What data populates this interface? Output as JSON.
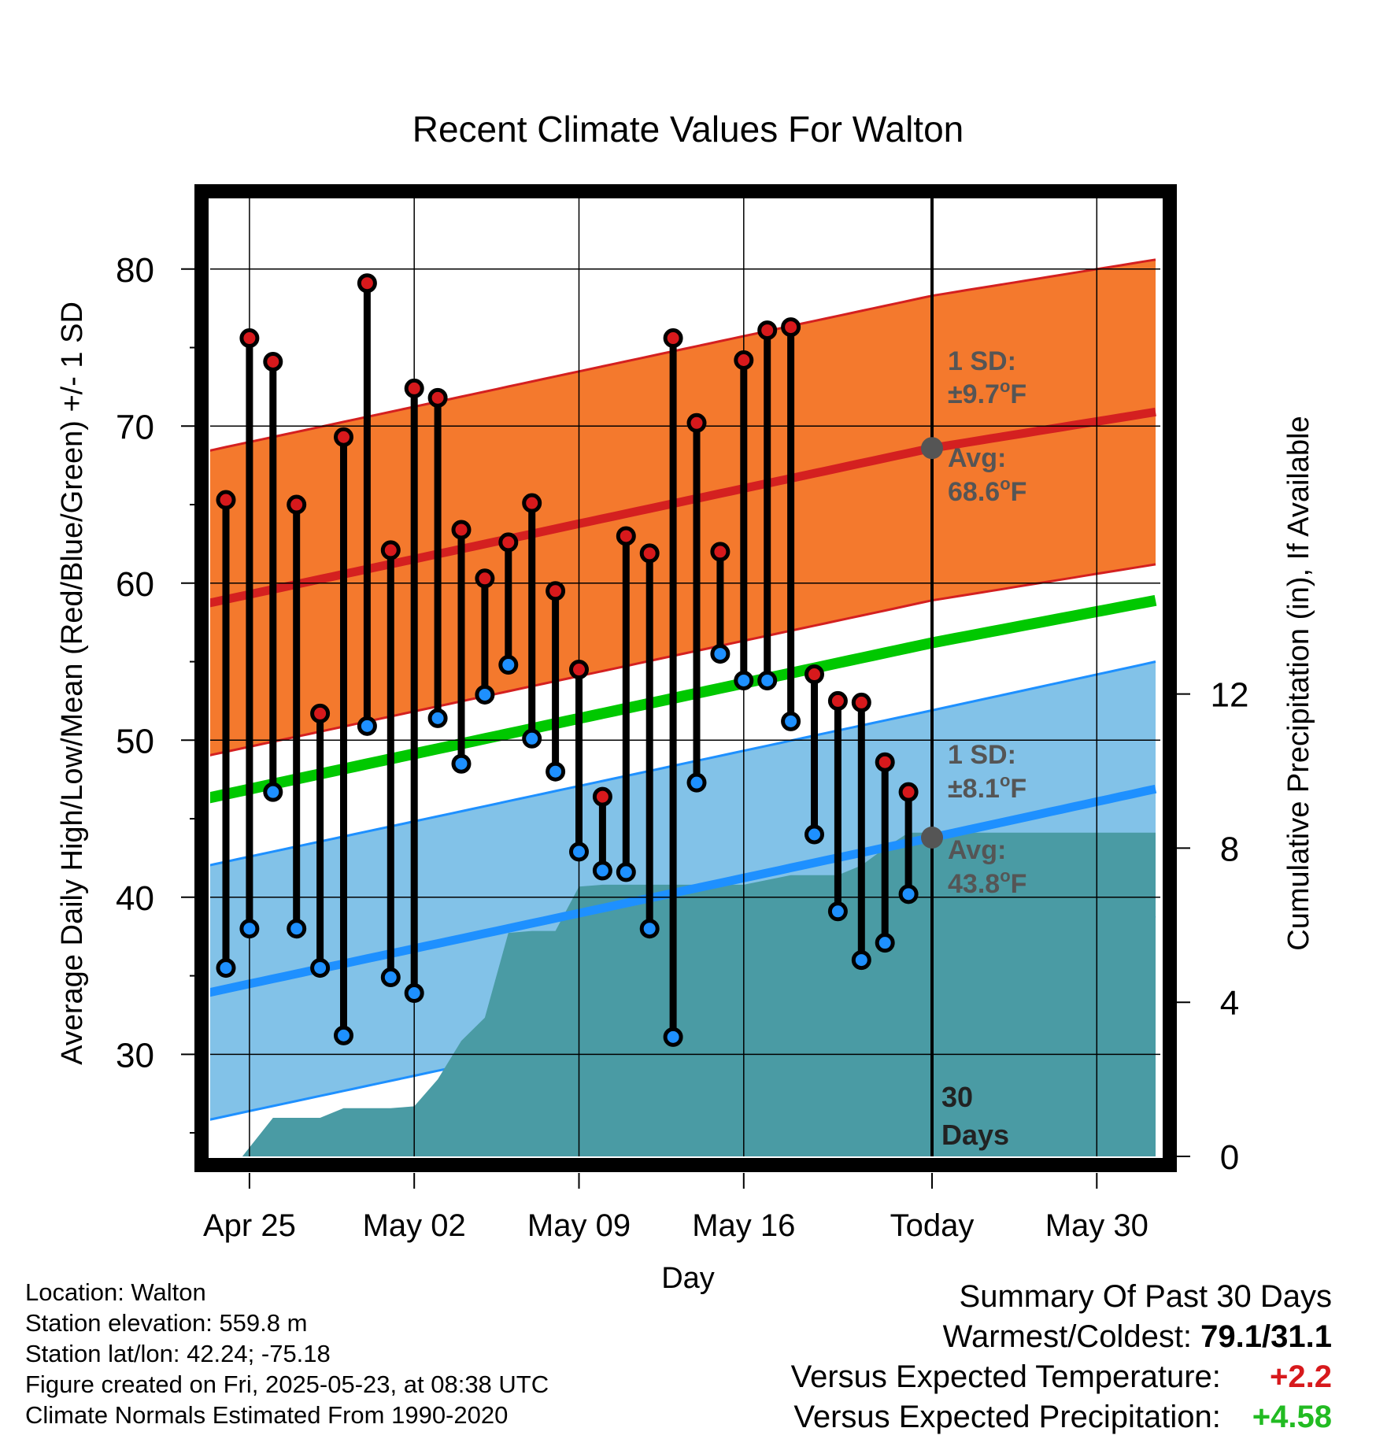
{
  "colors": {
    "high_marker": "#d7191c",
    "low_marker": "#1e90ff",
    "high_band": "#f4792d",
    "high_band_edge": "#d42020",
    "high_mean_line": "#d42020",
    "low_band": "#82c2e8",
    "low_band_edge": "#1e90ff",
    "low_mean_line": "#1e90ff",
    "mean_line": "#00c800",
    "precip_area": "#4a9ba4",
    "annotation_text": "#555555",
    "avg_dot": "#555555"
  },
  "chart_data": {
    "type": "line",
    "title": "Recent Climate Values For Walton",
    "xlabel": "Day",
    "ylabel_left": "Average Daily High/Low/Mean (Red/Blue/Green) +/- 1 SD",
    "ylabel_right": "Cumulative Precipitation (in), If Available",
    "x_range_days": [
      -33,
      9.5
    ],
    "ylim_left": [
      23.5,
      84.5
    ],
    "ylim_right": [
      0,
      25
    ],
    "x_tick_labels": [
      {
        "day": -29,
        "label": "Apr 25"
      },
      {
        "day": -22,
        "label": "May 02"
      },
      {
        "day": -15,
        "label": "May 09"
      },
      {
        "day": -8,
        "label": "May 16"
      },
      {
        "day": 0,
        "label": "Today"
      },
      {
        "day": 7,
        "label": "May 30"
      }
    ],
    "y_left_ticks": [
      30,
      40,
      50,
      60,
      70,
      80
    ],
    "y_right_ticks": [
      0,
      4,
      8,
      12
    ],
    "grid": true,
    "daily": [
      {
        "day": -30,
        "high": 65.3,
        "low": 35.5
      },
      {
        "day": -29,
        "high": 75.6,
        "low": 38.0
      },
      {
        "day": -28,
        "high": 74.1,
        "low": 46.7
      },
      {
        "day": -27,
        "high": 65.0,
        "low": 38.0
      },
      {
        "day": -26,
        "high": 51.7,
        "low": 35.5
      },
      {
        "day": -25,
        "high": 69.3,
        "low": 31.2
      },
      {
        "day": -24,
        "high": 79.1,
        "low": 50.9
      },
      {
        "day": -23,
        "high": 62.1,
        "low": 34.9
      },
      {
        "day": -22,
        "high": 72.4,
        "low": 33.9
      },
      {
        "day": -21,
        "high": 71.8,
        "low": 51.4
      },
      {
        "day": -20,
        "high": 63.4,
        "low": 48.5
      },
      {
        "day": -19,
        "high": 60.3,
        "low": 52.9
      },
      {
        "day": -18,
        "high": 62.6,
        "low": 54.8
      },
      {
        "day": -17,
        "high": 65.1,
        "low": 50.1
      },
      {
        "day": -16,
        "high": 59.5,
        "low": 48.0
      },
      {
        "day": -15,
        "high": 54.5,
        "low": 42.9
      },
      {
        "day": -14,
        "high": 46.4,
        "low": 41.7
      },
      {
        "day": -13,
        "high": 63.0,
        "low": 41.6
      },
      {
        "day": -12,
        "high": 61.9,
        "low": 38.0
      },
      {
        "day": -11,
        "high": 75.6,
        "low": 31.1
      },
      {
        "day": -10,
        "high": 70.2,
        "low": 47.3
      },
      {
        "day": -9,
        "high": 62.0,
        "low": 55.5
      },
      {
        "day": -8,
        "high": 74.2,
        "low": 53.8
      },
      {
        "day": -7,
        "high": 76.1,
        "low": 53.8
      },
      {
        "day": -6,
        "high": 76.3,
        "low": 51.2
      },
      {
        "day": -5,
        "high": 54.2,
        "low": 44.0
      },
      {
        "day": -4,
        "high": 52.5,
        "low": 39.1
      },
      {
        "day": -3,
        "high": 52.4,
        "low": 36.0
      },
      {
        "day": -2,
        "high": 48.6,
        "low": 37.1
      },
      {
        "day": -1,
        "high": 46.7,
        "low": 40.2
      }
    ],
    "normals": {
      "days": [
        -33,
        0,
        9.5
      ],
      "avg_high": [
        58.0,
        68.6,
        70.9
      ],
      "high_sd": 9.7,
      "avg_low": [
        33.2,
        43.8,
        46.9
      ],
      "low_sd": 8.1,
      "avg_mean": [
        45.6,
        56.2,
        58.9
      ]
    },
    "precip_cumulative": [
      {
        "day": -29.3,
        "value": 0
      },
      {
        "day": -28,
        "value": 1.0
      },
      {
        "day": -26,
        "value": 1.0
      },
      {
        "day": -25,
        "value": 1.25
      },
      {
        "day": -23,
        "value": 1.25
      },
      {
        "day": -22,
        "value": 1.3
      },
      {
        "day": -21,
        "value": 2.0
      },
      {
        "day": -20,
        "value": 3.0
      },
      {
        "day": -19,
        "value": 3.6
      },
      {
        "day": -18,
        "value": 5.8
      },
      {
        "day": -17,
        "value": 5.85
      },
      {
        "day": -16,
        "value": 5.85
      },
      {
        "day": -15,
        "value": 7.0
      },
      {
        "day": -14,
        "value": 7.05
      },
      {
        "day": -12,
        "value": 7.05
      },
      {
        "day": -10,
        "value": 7.05
      },
      {
        "day": -8,
        "value": 7.05
      },
      {
        "day": -6,
        "value": 7.3
      },
      {
        "day": -5,
        "value": 7.3
      },
      {
        "day": -4,
        "value": 7.3
      },
      {
        "day": -3,
        "value": 7.55
      },
      {
        "day": -2,
        "value": 8.0
      },
      {
        "day": -1,
        "value": 8.4
      },
      {
        "day": 9.5,
        "value": 8.4
      }
    ],
    "annotations": {
      "high_sd_label": "1 SD:",
      "high_sd_value": "±9.7",
      "high_avg_label": "Avg:",
      "high_avg_value": "68.6",
      "low_sd_label": "1 SD:",
      "low_sd_value": "±8.1",
      "low_avg_label": "Avg:",
      "low_avg_value": "43.8",
      "deg_symbol": "o",
      "unit": "F",
      "period_number": "30",
      "period_word": "Days"
    }
  },
  "info": {
    "location": "Location: Walton",
    "elevation": "Station elevation: 559.8 m",
    "latlon": "Station lat/lon: 42.24; -75.18",
    "created": "Figure created on Fri, 2025-05-23, at 08:38 UTC",
    "normals": "Climate Normals Estimated From 1990-2020"
  },
  "summary": {
    "title": "Summary Of Past 30 Days",
    "warmest_label": "Warmest/Coldest:",
    "warmest_value": "79.1/31.1",
    "temp_label": "Versus Expected Temperature:",
    "temp_value": "+2.2",
    "precip_label": "Versus Expected Precipitation:",
    "precip_value": "+4.58"
  }
}
